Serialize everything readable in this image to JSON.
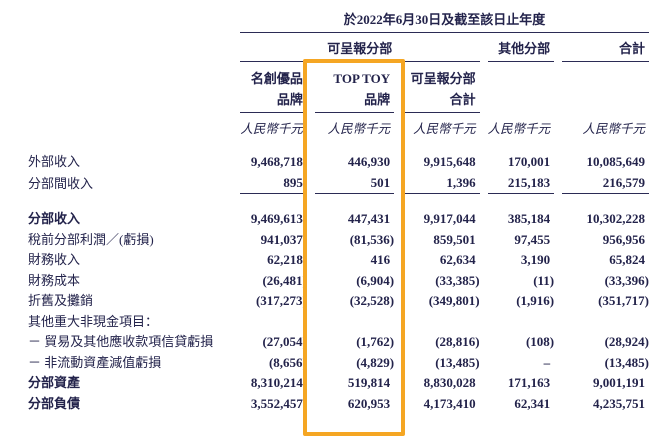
{
  "header": {
    "period_title": "於2022年6月30日及截至該日止年度",
    "groups": {
      "reportable": "可呈報分部",
      "other": "其他分部",
      "total": "合計"
    },
    "columns": [
      {
        "l1": "名創優品",
        "l2": "品牌"
      },
      {
        "l1": "TOP TOY",
        "l2": "品牌"
      },
      {
        "l1": "可呈報分部",
        "l2": "合計"
      }
    ],
    "unit_label": "人民幣千元"
  },
  "highlight": {
    "color": "#F5A623",
    "highlighted_column": "TOP TOY品牌"
  },
  "table": {
    "rows": [
      {
        "label": "外部收入",
        "values": [
          "9,468,718",
          "446,930",
          "9,915,648",
          "170,001",
          "10,085,649"
        ]
      },
      {
        "label": "分部間收入",
        "values": [
          "895",
          "501",
          "1,396",
          "215,183",
          "216,579"
        ]
      },
      {
        "label": "分部收入",
        "values": [
          "9,469,613",
          "447,431",
          "9,917,044",
          "385,184",
          "10,302,228"
        ]
      },
      {
        "label": "稅前分部利潤／(虧損)",
        "values": [
          "941,037",
          "(81,536)",
          "859,501",
          "97,455",
          "956,956"
        ]
      },
      {
        "label": "財務收入",
        "values": [
          "62,218",
          "416",
          "62,634",
          "3,190",
          "65,824"
        ]
      },
      {
        "label": "財務成本",
        "values": [
          "(26,481)",
          "(6,904)",
          "(33,385)",
          "(11)",
          "(33,396)"
        ]
      },
      {
        "label": "折舊及攤銷",
        "values": [
          "(317,273)",
          "(32,528)",
          "(349,801)",
          "(1,916)",
          "(351,717)"
        ]
      },
      {
        "label": "其他重大非現金項目：",
        "values": [
          "",
          "",
          "",
          "",
          ""
        ]
      },
      {
        "label": "－ 貿易及其他應收款項信貸虧損",
        "values": [
          "(27,054)",
          "(1,762)",
          "(28,816)",
          "(108)",
          "(28,924)"
        ]
      },
      {
        "label": "－ 非流動資產減值虧損",
        "values": [
          "(8,656)",
          "(4,829)",
          "(13,485)",
          "–",
          "(13,485)"
        ]
      },
      {
        "label": "分部資產",
        "values": [
          "8,310,214",
          "519,814",
          "8,830,028",
          "171,163",
          "9,001,191"
        ]
      },
      {
        "label": "分部負債",
        "values": [
          "3,552,457",
          "620,953",
          "4,173,410",
          "62,341",
          "4,235,751"
        ]
      }
    ]
  }
}
